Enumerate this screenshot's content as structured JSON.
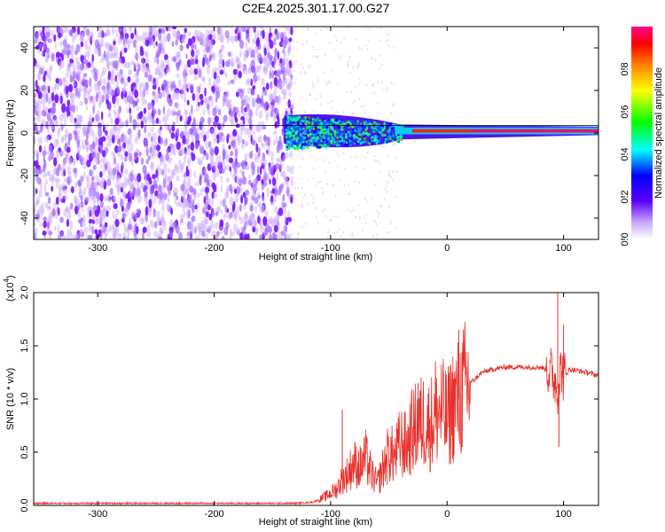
{
  "title": "C2E4.2025.301.17.00.G27",
  "chart_data": [
    {
      "type": "heatmap",
      "xlabel": "Height of straight line (km)",
      "ylabel": "Frequency (Hz)",
      "xlim": [
        -355,
        130
      ],
      "ylim": [
        -50,
        50
      ],
      "xticks": [
        -300,
        -200,
        -100,
        0,
        100
      ],
      "xtick_labels": [
        "-300",
        "-200",
        "-100",
        "0",
        "100"
      ],
      "yticks": [
        -40,
        -20,
        0,
        20,
        40
      ],
      "ytick_labels": [
        "-40",
        "-20",
        "0",
        "20",
        "40"
      ],
      "description_regions": [
        {
          "x_range": [
            -355,
            -135
          ],
          "freq_range": [
            -50,
            50
          ],
          "amplitude": "low (noise)"
        },
        {
          "x_range": [
            -140,
            -40
          ],
          "freq_range": [
            -10,
            10
          ],
          "amplitude": "0.2-0.5"
        },
        {
          "x_range": [
            -40,
            130
          ],
          "freq_center": 1,
          "amplitude": "~1.0 (signal carrier)"
        }
      ],
      "colorbar": {
        "label": "Normalized spectral amplitude",
        "range": [
          0.0,
          1.0
        ],
        "ticks": [
          0.0,
          0.2,
          0.4,
          0.6,
          0.8
        ],
        "tick_labels": [
          "0.0",
          "0.2",
          "0.4",
          "0.6",
          "0.8"
        ],
        "colors": [
          "#ffffff",
          "#7b00ff",
          "#0000ff",
          "#00ffff",
          "#00ff00",
          "#ffff00",
          "#ff8000",
          "#ff0000",
          "#ff00aa"
        ]
      }
    },
    {
      "type": "line",
      "xlabel": "Height of straight line (km)",
      "ylabel": "SNR (10 * v/v)",
      "scale_label": "(x10",
      "scale_exp": "4",
      "scale_close": ")",
      "xlim": [
        -355,
        130
      ],
      "ylim": [
        0.0,
        2.0
      ],
      "xticks": [
        -300,
        -200,
        -100,
        0,
        100
      ],
      "xtick_labels": [
        "-300",
        "-200",
        "-100",
        "0",
        "100"
      ],
      "yticks": [
        0.0,
        0.5,
        1.0,
        1.5,
        2.0
      ],
      "ytick_labels": [
        "0.0",
        "0.5",
        "1.0",
        "1.5",
        "2.0"
      ],
      "line_color": "#e8302a",
      "series": [
        {
          "name": "SNR",
          "x": [
            -355,
            -300,
            -200,
            -130,
            -115,
            -105,
            -95,
            -90,
            -85,
            -80,
            -75,
            -70,
            -65,
            -60,
            -55,
            -50,
            -45,
            -40,
            -35,
            -30,
            -25,
            -20,
            -15,
            -10,
            -5,
            0,
            5,
            10,
            15,
            20,
            30,
            40,
            50,
            60,
            70,
            80,
            85,
            90,
            95,
            98,
            100,
            105,
            110,
            120,
            130
          ],
          "y": [
            0.02,
            0.02,
            0.02,
            0.02,
            0.03,
            0.08,
            0.15,
            0.25,
            0.3,
            0.4,
            0.35,
            0.45,
            0.3,
            0.2,
            0.35,
            0.5,
            0.45,
            0.6,
            0.55,
            0.7,
            0.75,
            0.8,
            0.75,
            0.85,
            0.9,
            0.8,
            0.95,
            1.0,
            1.1,
            1.15,
            1.25,
            1.28,
            1.3,
            1.3,
            1.3,
            1.3,
            1.28,
            1.25,
            1.1,
            1.3,
            1.2,
            1.28,
            1.27,
            1.25,
            1.22
          ]
        }
      ],
      "spikes": [
        {
          "x": -90,
          "y": 0.9
        },
        {
          "x": -25,
          "y": 1.15
        },
        {
          "x": -10,
          "y": 1.35
        },
        {
          "x": 10,
          "y": 1.65
        },
        {
          "x": 95,
          "y": 2.0
        },
        {
          "x": 96,
          "y": 0.55
        },
        {
          "x": 100,
          "y": 1.7
        }
      ]
    }
  ]
}
